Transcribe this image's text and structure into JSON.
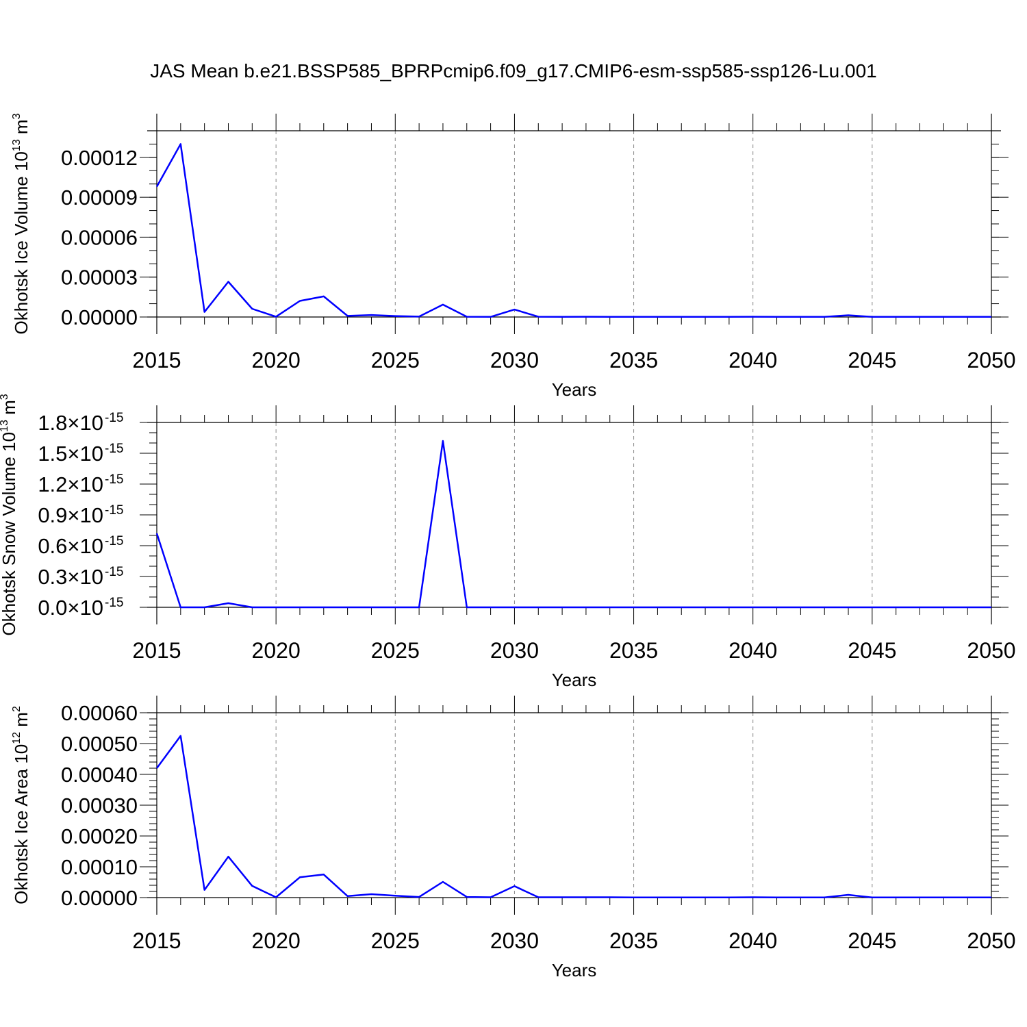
{
  "title": "JAS Mean b.e21.BSSP585_BPRPcmip6.f09_g17.CMIP6-esm-ssp585-ssp126-Lu.001",
  "colors": {
    "line": "#0000ff",
    "axis": "#000000",
    "grid": "#888888"
  },
  "chart_data": [
    {
      "type": "line",
      "name": "okhotsk-ice-volume",
      "ylabel": "Okhotsk Ice Volume",
      "ylabel_unit_base": "10",
      "ylabel_unit_exp": "13",
      "ylabel_unit_tail": "m",
      "ylabel_unit_tail_exp": "3",
      "xlabel": "Years",
      "xlim": [
        2015,
        2050
      ],
      "ylim": [
        0,
        0.00014
      ],
      "xticks": [
        2015,
        2020,
        2025,
        2030,
        2035,
        2040,
        2045,
        2050
      ],
      "xtick_labels": [
        "2015",
        "2020",
        "2025",
        "2030",
        "2035",
        "2040",
        "2045",
        "2050"
      ],
      "yticks": [
        0,
        3e-05,
        6e-05,
        9e-05,
        0.00012
      ],
      "ytick_labels": [
        "0.00000",
        "0.00003",
        "0.00006",
        "0.00009",
        "0.00012"
      ],
      "ytick_exp": "",
      "y_minor_step": 1e-05,
      "grid_x_dashed": true,
      "x": [
        2015,
        2016,
        2017,
        2018,
        2019,
        2020,
        2021,
        2022,
        2023,
        2024,
        2025,
        2026,
        2027,
        2028,
        2029,
        2030,
        2031,
        2032,
        2033,
        2034,
        2035,
        2036,
        2037,
        2038,
        2039,
        2040,
        2041,
        2042,
        2043,
        2044,
        2045,
        2046,
        2047,
        2048,
        2049,
        2050
      ],
      "y": [
        9.8e-05,
        0.00013,
        3.8e-06,
        2.65e-05,
        6.2e-06,
        2e-07,
        1.21e-05,
        1.55e-05,
        8e-07,
        1.5e-06,
        7e-07,
        3e-07,
        9.3e-06,
        2e-07,
        1e-07,
        5.6e-06,
        2e-07,
        1e-07,
        2e-07,
        1e-07,
        1e-07,
        1e-07,
        1e-07,
        1e-07,
        1e-07,
        2e-07,
        1e-07,
        1e-07,
        1e-07,
        1.3e-06,
        1e-07,
        1e-07,
        1e-07,
        1e-07,
        1e-07,
        1e-07
      ]
    },
    {
      "type": "line",
      "name": "okhotsk-snow-volume",
      "ylabel": "Okhotsk Snow Volume",
      "ylabel_unit_base": "10",
      "ylabel_unit_exp": "13",
      "ylabel_unit_tail": "m",
      "ylabel_unit_tail_exp": "3",
      "xlabel": "Years",
      "xlim": [
        2015,
        2050
      ],
      "ylim": [
        0,
        1.8
      ],
      "xticks": [
        2015,
        2020,
        2025,
        2030,
        2035,
        2040,
        2045,
        2050
      ],
      "xtick_labels": [
        "2015",
        "2020",
        "2025",
        "2030",
        "2035",
        "2040",
        "2045",
        "2050"
      ],
      "yticks": [
        0,
        0.3,
        0.6,
        0.9,
        1.2,
        1.5,
        1.8
      ],
      "ytick_labels": [
        "0.0×10",
        "0.3×10",
        "0.6×10",
        "0.9×10",
        "1.2×10",
        "1.5×10",
        "1.8×10"
      ],
      "ytick_exp": "-15",
      "y_minor_step": 0.1,
      "grid_x_dashed": true,
      "x": [
        2015,
        2016,
        2017,
        2018,
        2019,
        2020,
        2021,
        2022,
        2023,
        2024,
        2025,
        2026,
        2027,
        2028,
        2029,
        2030,
        2031,
        2032,
        2033,
        2034,
        2035,
        2036,
        2037,
        2038,
        2039,
        2040,
        2041,
        2042,
        2043,
        2044,
        2045,
        2046,
        2047,
        2048,
        2049,
        2050
      ],
      "y": [
        0.72,
        0.0,
        0.0,
        0.04,
        0.0,
        0.0,
        0.0,
        0.0,
        0.0,
        0.0,
        0.0,
        0.0,
        1.62,
        0.0,
        0.0,
        0.0,
        0.0,
        0.0,
        0.0,
        0.0,
        0.0,
        0.0,
        0.0,
        0.0,
        0.0,
        0.0,
        0.0,
        0.0,
        0.0,
        0.0,
        0.0,
        0.0,
        0.0,
        0.0,
        0.0,
        0.0
      ]
    },
    {
      "type": "line",
      "name": "okhotsk-ice-area",
      "ylabel": "Okhotsk Ice Area",
      "ylabel_unit_base": "10",
      "ylabel_unit_exp": "12",
      "ylabel_unit_tail": "m",
      "ylabel_unit_tail_exp": "2",
      "xlabel": "Years",
      "xlim": [
        2015,
        2050
      ],
      "ylim": [
        0,
        0.0006
      ],
      "xticks": [
        2015,
        2020,
        2025,
        2030,
        2035,
        2040,
        2045,
        2050
      ],
      "xtick_labels": [
        "2015",
        "2020",
        "2025",
        "2030",
        "2035",
        "2040",
        "2045",
        "2050"
      ],
      "yticks": [
        0,
        0.0001,
        0.0002,
        0.0003,
        0.0004,
        0.0005,
        0.0006
      ],
      "ytick_labels": [
        "0.00000",
        "0.00010",
        "0.00020",
        "0.00030",
        "0.00040",
        "0.00050",
        "0.00060"
      ],
      "ytick_exp": "",
      "y_minor_step": 2e-05,
      "grid_x_dashed": true,
      "x": [
        2015,
        2016,
        2017,
        2018,
        2019,
        2020,
        2021,
        2022,
        2023,
        2024,
        2025,
        2026,
        2027,
        2028,
        2029,
        2030,
        2031,
        2032,
        2033,
        2034,
        2035,
        2036,
        2037,
        2038,
        2039,
        2040,
        2041,
        2042,
        2043,
        2044,
        2045,
        2046,
        2047,
        2048,
        2049,
        2050
      ],
      "y": [
        0.00042,
        0.000525,
        2.5e-05,
        0.000133,
        3.8e-05,
        1e-06,
        6.6e-05,
        7.5e-05,
        5e-06,
        1.1e-05,
        6e-06,
        2e-06,
        5.1e-05,
        2e-06,
        1e-06,
        3.7e-05,
        1e-06,
        1e-06,
        1e-06,
        1e-06,
        5e-07,
        5e-07,
        5e-07,
        5e-07,
        5e-07,
        1e-06,
        5e-07,
        5e-07,
        5e-07,
        9e-06,
        5e-07,
        5e-07,
        5e-07,
        5e-07,
        5e-07,
        5e-07
      ]
    }
  ]
}
